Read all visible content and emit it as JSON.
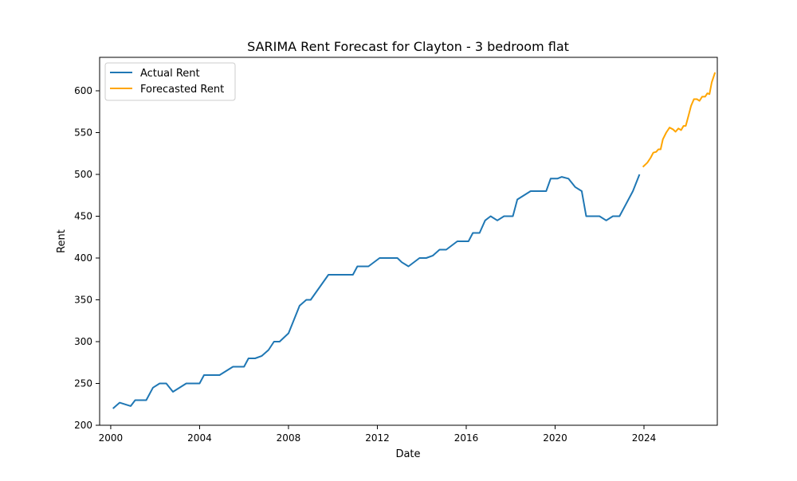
{
  "chart_data": {
    "type": "line",
    "title": "SARIMA Rent Forecast for Clayton - 3 bedroom flat",
    "xlabel": "Date",
    "ylabel": "Rent",
    "xlim": [
      1999.5,
      2027.3
    ],
    "ylim": [
      200,
      640
    ],
    "x_ticks": [
      2000,
      2004,
      2008,
      2012,
      2016,
      2020,
      2024
    ],
    "y_ticks": [
      200,
      250,
      300,
      350,
      400,
      450,
      500,
      550,
      600
    ],
    "grid": false,
    "legend_position": "upper-left",
    "series": [
      {
        "name": "Actual Rent",
        "color": "#1f77b4",
        "points": [
          [
            2000.1,
            220
          ],
          [
            2000.4,
            227
          ],
          [
            2000.9,
            223
          ],
          [
            2001.1,
            230
          ],
          [
            2001.6,
            230
          ],
          [
            2001.9,
            245
          ],
          [
            2002.2,
            250
          ],
          [
            2002.5,
            250
          ],
          [
            2002.8,
            240
          ],
          [
            2003.4,
            250
          ],
          [
            2004.0,
            250
          ],
          [
            2004.2,
            260
          ],
          [
            2004.9,
            260
          ],
          [
            2005.5,
            270
          ],
          [
            2006.0,
            270
          ],
          [
            2006.2,
            280
          ],
          [
            2006.5,
            280
          ],
          [
            2006.8,
            283
          ],
          [
            2007.1,
            290
          ],
          [
            2007.35,
            300
          ],
          [
            2007.6,
            300
          ],
          [
            2008.0,
            310
          ],
          [
            2008.2,
            323
          ],
          [
            2008.5,
            343
          ],
          [
            2008.8,
            350
          ],
          [
            2009.0,
            350
          ],
          [
            2009.8,
            380
          ],
          [
            2010.9,
            380
          ],
          [
            2011.1,
            390
          ],
          [
            2011.6,
            390
          ],
          [
            2012.1,
            400
          ],
          [
            2012.9,
            400
          ],
          [
            2013.1,
            395
          ],
          [
            2013.4,
            390
          ],
          [
            2013.9,
            400
          ],
          [
            2014.2,
            400
          ],
          [
            2014.5,
            403
          ],
          [
            2014.8,
            410
          ],
          [
            2015.1,
            410
          ],
          [
            2015.6,
            420
          ],
          [
            2016.1,
            420
          ],
          [
            2016.3,
            430
          ],
          [
            2016.6,
            430
          ],
          [
            2016.85,
            445
          ],
          [
            2017.1,
            450
          ],
          [
            2017.4,
            445
          ],
          [
            2017.7,
            450
          ],
          [
            2018.1,
            450
          ],
          [
            2018.3,
            470
          ],
          [
            2018.9,
            480
          ],
          [
            2019.6,
            480
          ],
          [
            2019.8,
            495
          ],
          [
            2020.1,
            495
          ],
          [
            2020.3,
            497
          ],
          [
            2020.6,
            495
          ],
          [
            2020.9,
            485
          ],
          [
            2021.2,
            480
          ],
          [
            2021.4,
            450
          ],
          [
            2022.0,
            450
          ],
          [
            2022.3,
            445
          ],
          [
            2022.6,
            450
          ],
          [
            2022.9,
            450
          ],
          [
            2023.2,
            465
          ],
          [
            2023.5,
            480
          ],
          [
            2023.8,
            500
          ]
        ]
      },
      {
        "name": "Forecasted Rent",
        "color": "#ffa500",
        "points": [
          [
            2023.95,
            509
          ],
          [
            2024.15,
            514
          ],
          [
            2024.3,
            520
          ],
          [
            2024.42,
            526
          ],
          [
            2024.55,
            527
          ],
          [
            2024.65,
            530
          ],
          [
            2024.75,
            530
          ],
          [
            2024.85,
            542
          ],
          [
            2025.0,
            550
          ],
          [
            2025.15,
            556
          ],
          [
            2025.3,
            554
          ],
          [
            2025.42,
            551
          ],
          [
            2025.55,
            555
          ],
          [
            2025.67,
            553
          ],
          [
            2025.78,
            558
          ],
          [
            2025.88,
            558
          ],
          [
            2026.0,
            570
          ],
          [
            2026.12,
            582
          ],
          [
            2026.25,
            590
          ],
          [
            2026.38,
            590
          ],
          [
            2026.5,
            588
          ],
          [
            2026.62,
            593
          ],
          [
            2026.75,
            593
          ],
          [
            2026.85,
            597
          ],
          [
            2026.95,
            596
          ],
          [
            2027.05,
            610
          ],
          [
            2027.2,
            622
          ]
        ]
      }
    ]
  }
}
